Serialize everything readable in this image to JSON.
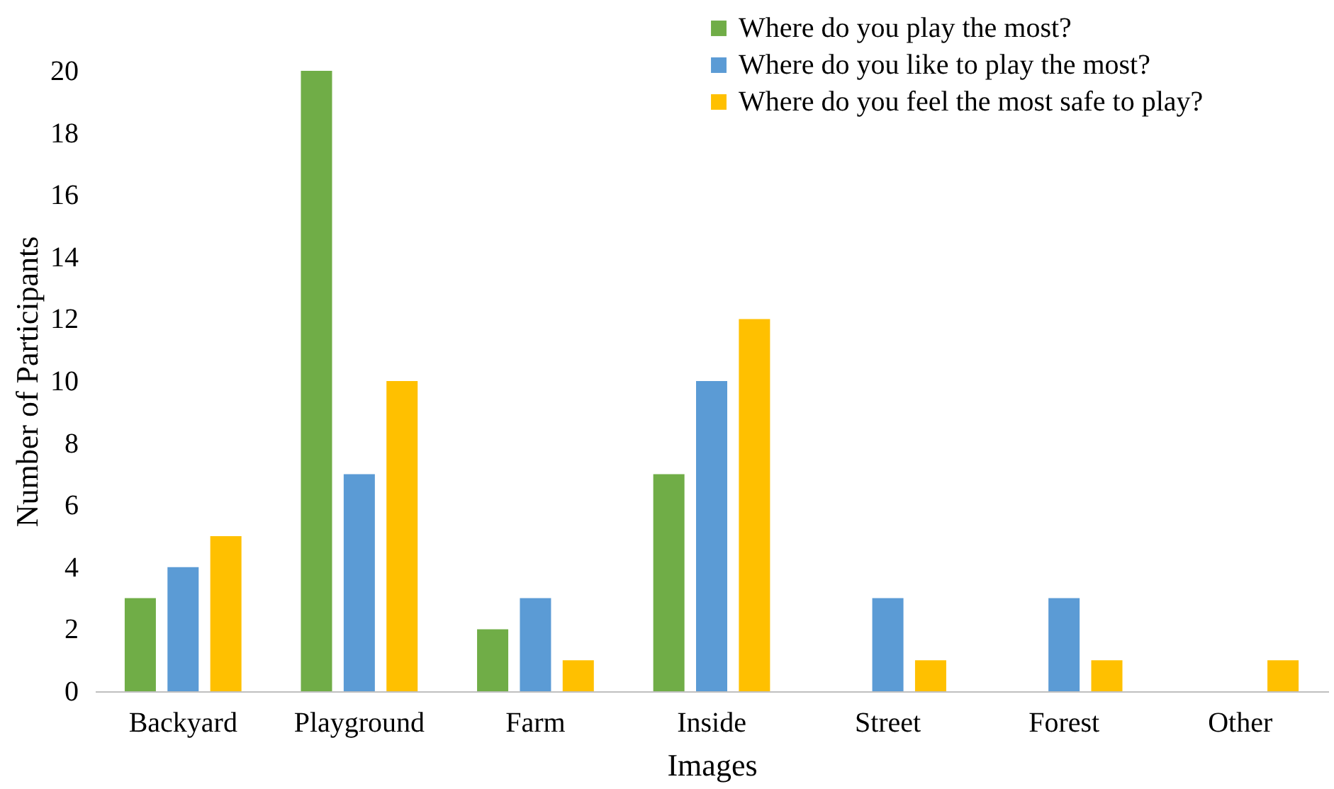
{
  "chart_data": {
    "type": "bar",
    "xlabel": "Images",
    "ylabel": "Number of Participants",
    "categories": [
      "Backyard",
      "Playground",
      "Farm",
      "Inside",
      "Street",
      "Forest",
      "Other"
    ],
    "series": [
      {
        "name": "Where do you play the most?",
        "color": "#70ad47",
        "values": [
          3,
          20,
          2,
          7,
          null,
          null,
          null
        ]
      },
      {
        "name": "Where do you like to play the most?",
        "color": "#5b9bd5",
        "values": [
          4,
          7,
          3,
          10,
          3,
          3,
          null
        ]
      },
      {
        "name": "Where do you feel the most safe to play?",
        "color": "#ffc000",
        "values": [
          5,
          10,
          1,
          12,
          1,
          1,
          1
        ]
      }
    ],
    "ylim": [
      0,
      20
    ],
    "yticks": [
      0,
      2,
      4,
      6,
      8,
      10,
      12,
      14,
      16,
      18,
      20
    ],
    "grid": false,
    "legend": "top right"
  }
}
